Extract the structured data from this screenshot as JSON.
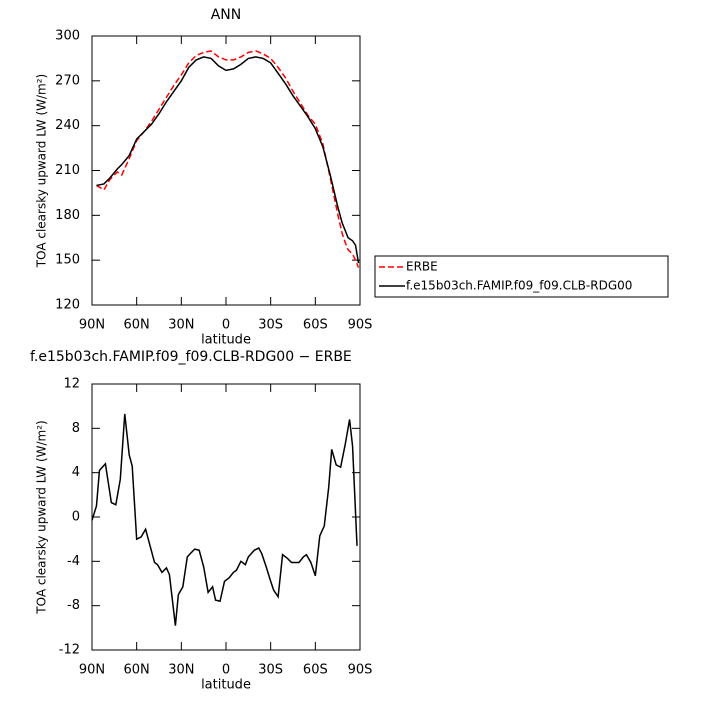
{
  "chart_data": [
    {
      "type": "line",
      "title": "ANN",
      "xlabel": "latitude",
      "ylabel": "TOA clearsky upward LW (W/m²)",
      "x": [
        87,
        82,
        78,
        73,
        70,
        65,
        60,
        55,
        50,
        45,
        40,
        35,
        30,
        25,
        20,
        15,
        10,
        5,
        0,
        -5,
        -10,
        -15,
        -20,
        -25,
        -30,
        -35,
        -40,
        -45,
        -50,
        -55,
        -60,
        -65,
        -70,
        -75,
        -78,
        -80,
        -82,
        -85,
        -87,
        -89
      ],
      "series": [
        {
          "name": "ERBE",
          "color": "#ff0000",
          "line_style": "dashed",
          "values": [
            200,
            197,
            204,
            209,
            207,
            218,
            230,
            236,
            243,
            251,
            259,
            267,
            274,
            282,
            287,
            289,
            290,
            286,
            284,
            284,
            286,
            289,
            290,
            288,
            285,
            279,
            272,
            263,
            255,
            247,
            241,
            228,
            205,
            181,
            168,
            162,
            157,
            154,
            150,
            145
          ]
        },
        {
          "name": "f.e15b03ch.FAMIP.f09_f09.CLB-RDG00",
          "color": "#000000",
          "line_style": "solid",
          "values": [
            200,
            201,
            205,
            211,
            214,
            220,
            231,
            236,
            241,
            248,
            256,
            263,
            270,
            279,
            284,
            286,
            285,
            280,
            277,
            278,
            281,
            285,
            286,
            285,
            282,
            275,
            268,
            260,
            253,
            246,
            238,
            226,
            207,
            186,
            175,
            170,
            165,
            163,
            160,
            148
          ]
        }
      ],
      "xlim": [
        90,
        -90
      ],
      "xticks": [
        {
          "value": 90,
          "label": "90N"
        },
        {
          "value": 60,
          "label": "60N"
        },
        {
          "value": 30,
          "label": "30N"
        },
        0,
        {
          "value": -30,
          "label": "30S"
        },
        {
          "value": -60,
          "label": "60S"
        },
        {
          "value": -90,
          "label": "90S"
        }
      ],
      "ylim": [
        120,
        300
      ],
      "yticks": [
        120,
        150,
        180,
        210,
        240,
        270,
        300
      ],
      "legend": "right"
    },
    {
      "type": "line",
      "title": "f.e15b03ch.FAMIP.f09_f09.CLB-RDG00 − ERBE",
      "xlabel": "latitude",
      "ylabel": "TOA clearsky upward LW (W/m²)",
      "x": [
        90,
        87,
        85,
        81,
        77,
        74,
        71,
        68,
        65,
        63,
        60,
        57,
        54,
        51,
        48,
        46,
        43,
        40,
        38,
        34,
        32,
        29,
        26,
        24,
        21,
        18,
        15,
        12,
        9,
        7,
        4,
        1,
        -2,
        -5,
        -7,
        -10,
        -13,
        -15,
        -19,
        -22,
        -24,
        -27,
        -30,
        -32,
        -35,
        -38,
        -41,
        -44,
        -46,
        -49,
        -52,
        -54,
        -57,
        -60,
        -63,
        -66,
        -69,
        -71,
        -74,
        -77,
        -80,
        -83,
        -85,
        -88
      ],
      "series": [
        {
          "name": null,
          "color": "#000000",
          "line_style": "solid",
          "values": [
            -0.3,
            1,
            4.2,
            4.8,
            1.3,
            1.1,
            3.4,
            9.3,
            5.6,
            4.6,
            -2,
            -1.8,
            -1.1,
            -2.6,
            -4.1,
            -4.3,
            -5,
            -4.6,
            -5.2,
            -9.8,
            -7,
            -6.3,
            -3.6,
            -3.3,
            -2.9,
            -3,
            -4.5,
            -6.8,
            -6.3,
            -7.5,
            -7.6,
            -5.8,
            -5.5,
            -5,
            -4.8,
            -4,
            -4.3,
            -3.6,
            -3,
            -2.8,
            -3.3,
            -4.5,
            -5.8,
            -6.6,
            -7.2,
            -3.4,
            -3.7,
            -4.1,
            -4.1,
            -4.1,
            -3.6,
            -3.4,
            -4.1,
            -5.3,
            -1.7,
            -0.8,
            2.7,
            6.1,
            4.7,
            4.5,
            6.5,
            8.8,
            6.4,
            -2.6
          ]
        }
      ],
      "xlim": [
        90,
        -90
      ],
      "xticks": [
        {
          "value": 90,
          "label": "90N"
        },
        {
          "value": 60,
          "label": "60N"
        },
        {
          "value": 30,
          "label": "30N"
        },
        0,
        {
          "value": -30,
          "label": "30S"
        },
        {
          "value": -60,
          "label": "60S"
        },
        {
          "value": -90,
          "label": "90S"
        }
      ],
      "ylim": [
        -12,
        12
      ],
      "yticks": [
        -12,
        -8,
        -4,
        0,
        4,
        8,
        12
      ]
    }
  ]
}
